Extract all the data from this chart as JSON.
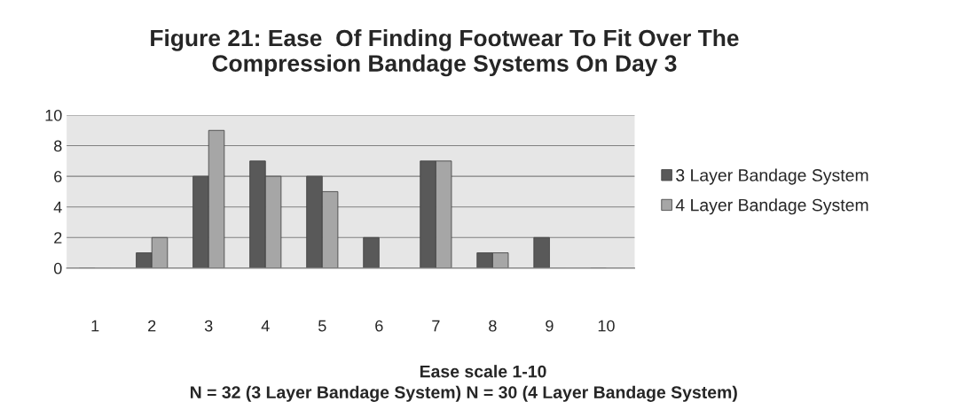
{
  "chart_data": {
    "type": "bar",
    "title": "Figure 21: Ease  Of Finding Footwear To Fit Over The\nCompression Bandage Systems On Day 3",
    "xlabel": "Ease scale 1-10",
    "annotations": [
      "N = 32 (3 Layer Bandage System) N = 30 (4 Layer Bandage System)"
    ],
    "categories": [
      "1",
      "2",
      "3",
      "4",
      "5",
      "6",
      "7",
      "8",
      "9",
      "10"
    ],
    "series": [
      {
        "name": "3 Layer Bandage System",
        "color": "#595959",
        "values": [
          0,
          1,
          6,
          7,
          6,
          2,
          7,
          1,
          2,
          0
        ]
      },
      {
        "name": "4 Layer Bandage System",
        "color": "#a6a6a6",
        "values": [
          0,
          2,
          9,
          6,
          5,
          0,
          7,
          1,
          0,
          0
        ]
      }
    ],
    "ylim": [
      0,
      10
    ],
    "yticks": [
      0,
      2,
      4,
      6,
      8,
      10
    ],
    "grid": "y",
    "legend": "right"
  }
}
